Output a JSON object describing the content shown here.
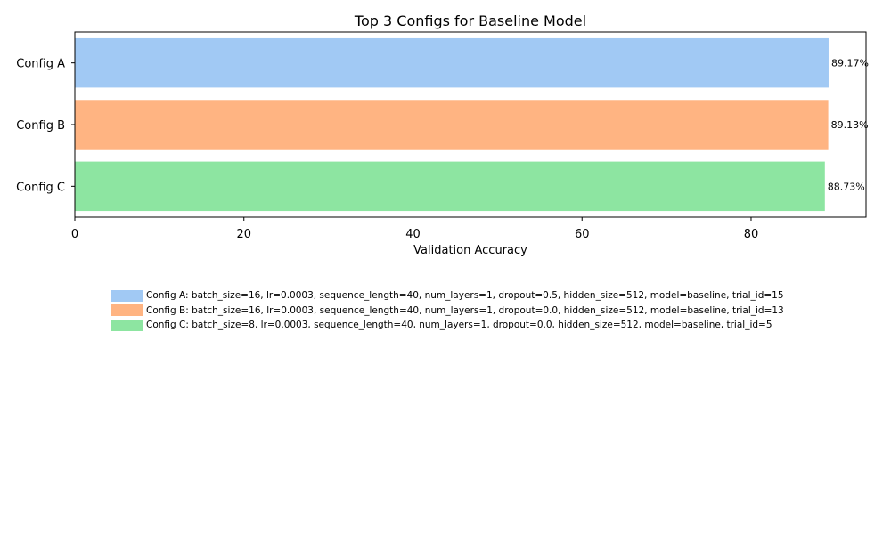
{
  "chart_data": {
    "type": "bar",
    "orientation": "horizontal",
    "title": "Top 3 Configs for Baseline Model",
    "xlabel": "Validation Accuracy",
    "ylabel": "",
    "categories": [
      "Config A",
      "Config B",
      "Config C"
    ],
    "values": [
      89.17,
      89.13,
      88.73
    ],
    "value_labels": [
      "89.17%",
      "89.13%",
      "88.73%"
    ],
    "colors": [
      "#a1c9f4",
      "#ffb482",
      "#8de5a1"
    ],
    "xlim": [
      0,
      93.6
    ],
    "xticks": [
      0,
      20,
      40,
      60,
      80
    ],
    "xtick_labels": [
      "0",
      "20",
      "40",
      "60",
      "80"
    ],
    "grid": false,
    "legend_placement": "below",
    "legend": [
      {
        "label": "Config A: batch_size=16, lr=0.0003, sequence_length=40, num_layers=1, dropout=0.5, hidden_size=512, model=baseline, trial_id=15",
        "color": "#a1c9f4"
      },
      {
        "label": "Config B: batch_size=16, lr=0.0003, sequence_length=40, num_layers=1, dropout=0.0, hidden_size=512, model=baseline, trial_id=13",
        "color": "#ffb482"
      },
      {
        "label": "Config C: batch_size=8, lr=0.0003, sequence_length=40, num_layers=1, dropout=0.0, hidden_size=512, model=baseline, trial_id=5",
        "color": "#8de5a1"
      }
    ]
  }
}
